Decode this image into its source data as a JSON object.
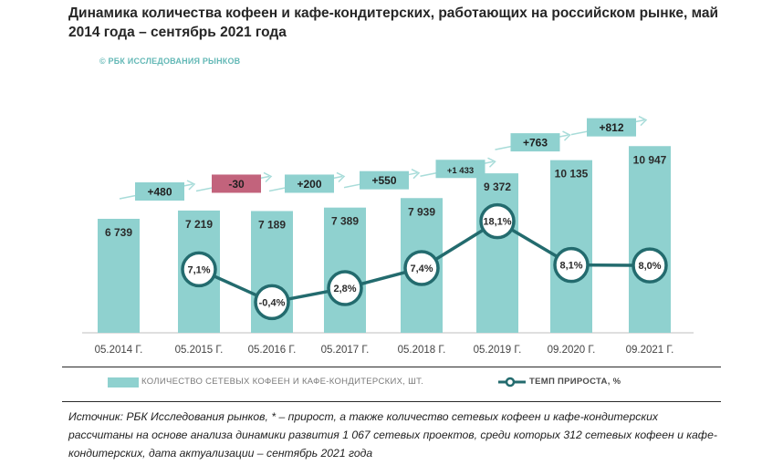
{
  "title": "Динамика количества кофеен и кафе-кондитерских, работающих на российском рынке, май 2014 года – сентябрь 2021 года",
  "brand": "© РБК ИССЛЕДОВАНИЯ РЫНКОВ",
  "source_note": "Источник: РБК Исследования рынков, * – прирост, а также количество сетевых кофеен и кафе-кондитерских рассчитаны на основе анализа динамики развития 1 067 сетевых проектов, среди которых 312 сетевых кофеен и кафе-кондитерских, дата актуализации – сентябрь 2021 года",
  "colors": {
    "bar": "#8fd1cf",
    "line": "#236b6e",
    "increase_box": "#8fd1cf",
    "decrease_box": "#c2637c",
    "arrow": "#a8dcd9"
  },
  "chart_data": {
    "type": "bar",
    "categories": [
      "05.2014 Г.",
      "05.2015 Г.",
      "05.2016 Г.",
      "05.2017 Г.",
      "05.2018 Г.",
      "05.2019 Г.",
      "09.2020 Г.",
      "09.2021 Г."
    ],
    "series": [
      {
        "name": "КОЛИЧЕСТВО СЕТЕВЫХ КОФЕЕН И КАФЕ-КОНДИТЕРСКИХ, ШТ.",
        "type": "bar",
        "values": [
          6739,
          7219,
          7189,
          7389,
          7939,
          9372,
          10135,
          10947
        ],
        "labels": [
          "6 739",
          "7 219",
          "7 189",
          "7 389",
          "7 939",
          "9 372",
          "10 135",
          "10 947"
        ]
      },
      {
        "name": "ТЕМП ПРИРОСТА, %",
        "type": "line",
        "values": [
          null,
          7.1,
          -0.4,
          2.8,
          7.4,
          18.1,
          8.1,
          8.0
        ],
        "labels": [
          null,
          "7,1%",
          "-0,4%",
          "2,8%",
          "7,4%",
          "18,1%",
          "8,1%",
          "8,0%"
        ]
      }
    ],
    "increments": {
      "values": [
        480,
        -30,
        200,
        550,
        1433,
        763,
        812
      ],
      "labels": [
        "+480",
        "-30",
        "+200",
        "+550",
        "+1 433",
        "+763",
        "+812"
      ]
    },
    "legend": "bottom",
    "grid": false
  }
}
